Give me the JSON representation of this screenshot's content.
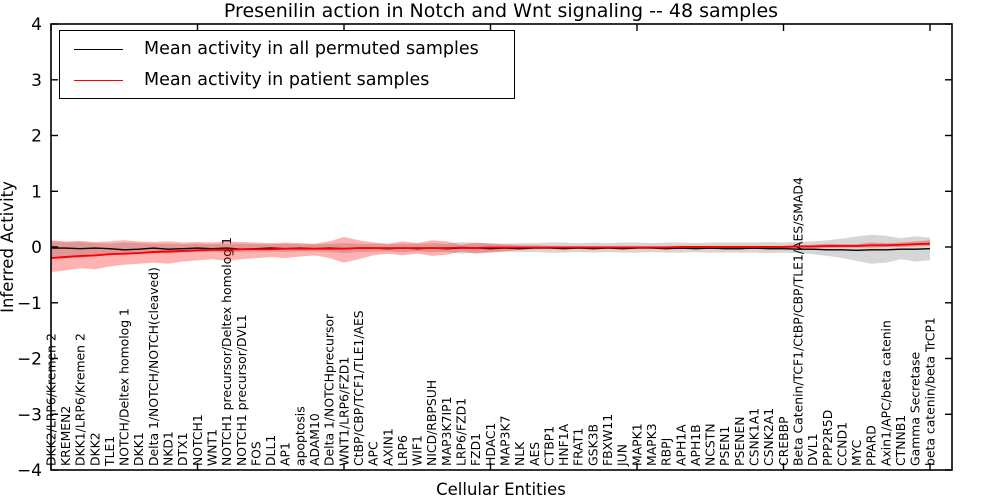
{
  "chart_data": {
    "type": "line",
    "title": "Presenilin action in Notch and Wnt signaling -- 48 samples",
    "xlabel": "Cellular Entities",
    "ylabel": "Inferred Activity",
    "ylim": [
      -4,
      4
    ],
    "ytick_labels": [
      "4",
      "3",
      "2",
      "1",
      "0",
      "−1",
      "−2",
      "−3",
      "−4"
    ],
    "x_major_tick_step": 10,
    "grid": false,
    "legend_position": "upper left",
    "categories": [
      "DKK2/LRP6/Kremen 2",
      "KREMEN2",
      "DKK1/LRP6/Kremen 2",
      "DKK2",
      "TLE1",
      "NOTCH/Deltex homolog 1",
      "DKK1",
      "Delta 1/NOTCH/NOTCH(cleaved)",
      "NKD1",
      "DTX1",
      "NOTCH1",
      "WNT1",
      "NOTCH1 precursor/Deltex homolog 1",
      "NOTCH1 precursor/DVL1",
      "FOS",
      "DLL1",
      "AP1",
      "apoptosis",
      "ADAM10",
      "Delta 1/NOTCHprecursor",
      "WNT1/LRP6/FZD1",
      "CtBP/CBP/TCF1/TLE1/AES",
      "APC",
      "AXIN1",
      "LRP6",
      "WIF1",
      "NICD/RBPSUH",
      "MAP3K7IP1",
      "LRP6/FZD1",
      "FZD1",
      "HDAC1",
      "MAP3K7",
      "NLK",
      "AES",
      "CTBP1",
      "HNF1A",
      "FRAT1",
      "GSK3B",
      "FBXW11",
      "JUN",
      "MAPK1",
      "MAPK3",
      "RBPJ",
      "APH1A",
      "APH1B",
      "NCSTN",
      "PSEN1",
      "PSENEN",
      "CSNK1A1",
      "CSNK2A1",
      "CREBBP",
      "Beta Catenin/TCF1/CtBP/CBP/TLE1/AES/SMAD4",
      "DVL1",
      "PPP2R5D",
      "CCND1",
      "MYC",
      "PPARD",
      "Axin1/APC/beta catenin",
      "CTNNB1",
      "Gamma Secretase",
      "beta catenin/beta TrCP1"
    ],
    "series": [
      {
        "name": "Mean activity in all permuted samples",
        "color": "#000000",
        "line_width": 1.4,
        "band_color": "rgba(0,0,0,0.16)",
        "values": [
          -0.02,
          -0.02,
          -0.03,
          -0.02,
          -0.03,
          -0.05,
          -0.04,
          -0.02,
          -0.04,
          -0.03,
          -0.02,
          -0.03,
          -0.02,
          -0.04,
          -0.03,
          -0.02,
          -0.03,
          -0.02,
          -0.03,
          -0.02,
          -0.03,
          -0.02,
          -0.02,
          -0.03,
          -0.02,
          -0.03,
          -0.02,
          -0.03,
          -0.02,
          -0.02,
          -0.03,
          -0.02,
          -0.03,
          -0.02,
          -0.02,
          -0.03,
          -0.02,
          -0.03,
          -0.02,
          -0.03,
          -0.02,
          -0.02,
          -0.03,
          -0.02,
          -0.03,
          -0.02,
          -0.03,
          -0.03,
          -0.02,
          -0.03,
          -0.03,
          -0.04,
          -0.04,
          -0.05,
          -0.05,
          -0.06,
          -0.05,
          -0.05,
          -0.04,
          -0.04,
          -0.03
        ],
        "band_upper": [
          0.1,
          0.08,
          0.09,
          0.07,
          0.06,
          0.08,
          0.07,
          0.06,
          0.06,
          0.05,
          0.06,
          0.05,
          0.06,
          0.06,
          0.05,
          0.05,
          0.06,
          0.05,
          0.05,
          0.06,
          0.07,
          0.06,
          0.06,
          0.05,
          0.06,
          0.06,
          0.07,
          0.06,
          0.09,
          0.07,
          0.07,
          0.06,
          0.07,
          0.07,
          0.08,
          0.08,
          0.07,
          0.08,
          0.07,
          0.08,
          0.08,
          0.07,
          0.08,
          0.08,
          0.07,
          0.08,
          0.08,
          0.08,
          0.08,
          0.09,
          0.08,
          0.09,
          0.1,
          0.12,
          0.15,
          0.19,
          0.22,
          0.2,
          0.16,
          0.19,
          0.17
        ],
        "band_lower": [
          -0.22,
          -0.17,
          -0.2,
          -0.15,
          -0.12,
          -0.14,
          -0.12,
          -0.1,
          -0.12,
          -0.1,
          -0.09,
          -0.09,
          -0.1,
          -0.09,
          -0.08,
          -0.08,
          -0.09,
          -0.08,
          -0.08,
          -0.09,
          -0.11,
          -0.09,
          -0.08,
          -0.08,
          -0.09,
          -0.08,
          -0.09,
          -0.09,
          -0.12,
          -0.1,
          -0.09,
          -0.08,
          -0.09,
          -0.09,
          -0.1,
          -0.1,
          -0.09,
          -0.1,
          -0.09,
          -0.1,
          -0.1,
          -0.09,
          -0.1,
          -0.1,
          -0.09,
          -0.1,
          -0.1,
          -0.1,
          -0.1,
          -0.11,
          -0.1,
          -0.11,
          -0.13,
          -0.16,
          -0.2,
          -0.25,
          -0.3,
          -0.28,
          -0.22,
          -0.26,
          -0.24
        ]
      },
      {
        "name": "Mean activity in patient samples",
        "color": "#ff0000",
        "line_width": 1.9,
        "band_color": "rgba(255,0,0,0.30)",
        "values": [
          -0.2,
          -0.18,
          -0.16,
          -0.15,
          -0.13,
          -0.12,
          -0.11,
          -0.09,
          -0.08,
          -0.07,
          -0.06,
          -0.05,
          -0.05,
          -0.04,
          -0.04,
          -0.04,
          -0.03,
          -0.03,
          -0.03,
          -0.03,
          -0.03,
          -0.02,
          -0.02,
          -0.02,
          -0.02,
          -0.02,
          -0.02,
          -0.02,
          -0.01,
          -0.02,
          -0.01,
          -0.01,
          -0.01,
          -0.01,
          -0.01,
          -0.01,
          -0.01,
          -0.01,
          -0.01,
          -0.01,
          -0.01,
          -0.01,
          -0.01,
          0.0,
          0.0,
          0.0,
          0.0,
          0.0,
          0.0,
          0.0,
          0.0,
          0.01,
          0.01,
          0.02,
          0.02,
          0.02,
          0.03,
          0.03,
          0.04,
          0.05,
          0.06
        ],
        "band_upper": [
          0.12,
          0.1,
          0.11,
          0.09,
          0.1,
          0.12,
          0.1,
          0.09,
          0.1,
          0.08,
          0.09,
          0.08,
          0.1,
          0.09,
          0.08,
          0.07,
          0.08,
          0.07,
          0.06,
          0.1,
          0.18,
          0.12,
          0.08,
          0.06,
          0.1,
          0.07,
          0.12,
          0.1,
          0.04,
          0.08,
          0.06,
          0.05,
          0.03,
          0.03,
          0.02,
          0.02,
          0.02,
          0.02,
          0.02,
          0.02,
          0.02,
          0.02,
          0.02,
          0.02,
          0.02,
          0.02,
          0.02,
          0.02,
          0.02,
          0.02,
          0.02,
          0.03,
          0.04,
          0.06,
          0.05,
          0.05,
          0.08,
          0.07,
          0.08,
          0.1,
          0.12
        ],
        "band_lower": [
          -0.45,
          -0.42,
          -0.38,
          -0.4,
          -0.35,
          -0.32,
          -0.3,
          -0.28,
          -0.3,
          -0.26,
          -0.24,
          -0.22,
          -0.25,
          -0.22,
          -0.2,
          -0.18,
          -0.2,
          -0.17,
          -0.15,
          -0.2,
          -0.28,
          -0.22,
          -0.15,
          -0.12,
          -0.15,
          -0.12,
          -0.16,
          -0.14,
          -0.08,
          -0.12,
          -0.1,
          -0.08,
          -0.05,
          -0.04,
          -0.03,
          -0.03,
          -0.03,
          -0.03,
          -0.03,
          -0.03,
          -0.03,
          -0.03,
          -0.03,
          -0.02,
          -0.02,
          -0.02,
          -0.02,
          -0.02,
          -0.02,
          -0.02,
          -0.02,
          -0.02,
          -0.02,
          -0.02,
          -0.01,
          -0.01,
          -0.01,
          0.0,
          0.0,
          0.01,
          0.02
        ]
      }
    ]
  }
}
